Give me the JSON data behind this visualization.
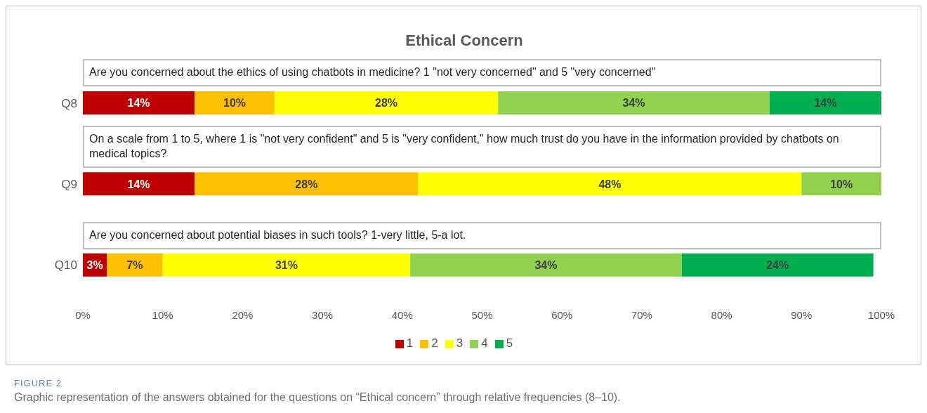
{
  "chart_data": {
    "type": "bar",
    "orientation": "horizontal",
    "stacked": true,
    "title": "Ethical Concern",
    "categories": [
      "Q8",
      "Q9",
      "Q10"
    ],
    "series": [
      {
        "name": "1",
        "color": "#c00000",
        "values": [
          14,
          14,
          3
        ],
        "value_labels": [
          "14%",
          "14%",
          "3%"
        ]
      },
      {
        "name": "2",
        "color": "#ffc000",
        "values": [
          10,
          28,
          7
        ],
        "value_labels": [
          "10%",
          "28%",
          "7%"
        ]
      },
      {
        "name": "3",
        "color": "#ffff00",
        "values": [
          28,
          48,
          31
        ],
        "value_labels": [
          "28%",
          "48%",
          "31%"
        ]
      },
      {
        "name": "4",
        "color": "#92d050",
        "values": [
          34,
          10,
          34
        ],
        "value_labels": [
          "34%",
          "10%",
          "34%"
        ]
      },
      {
        "name": "5",
        "color": "#00b050",
        "values": [
          14,
          null,
          24
        ],
        "value_labels": [
          "14%",
          null,
          "24%"
        ]
      }
    ],
    "xlim": [
      0,
      100
    ],
    "xticks": [
      {
        "value": 0,
        "label": "0%"
      },
      {
        "value": 10,
        "label": "10%"
      },
      {
        "value": 20,
        "label": "20%"
      },
      {
        "value": 30,
        "label": "30%"
      },
      {
        "value": 40,
        "label": "40%"
      },
      {
        "value": 50,
        "label": "50%"
      },
      {
        "value": 60,
        "label": "60%"
      },
      {
        "value": 70,
        "label": "70%"
      },
      {
        "value": 80,
        "label": "80%"
      },
      {
        "value": 90,
        "label": "90%"
      },
      {
        "value": 100,
        "label": "100%"
      }
    ],
    "grid": false,
    "legend": "bottom",
    "annotations": [
      "Are you concerned about the ethics of using chatbots in medicine? 1 \"not very concerned\" and 5 \"very concerned\"",
      "On a scale from 1 to 5, where 1 is \"not very confident\" and 5 is \"very confident,\" how much trust do you have in the information provided by chatbots on medical topics?",
      "Are you concerned about potential biases in such tools? 1-very little, 5-a lot.",
      "FIGURE 2",
      "Graphic representation of the answers obtained for the questions on “Ethical concern” through relative frequencies (8–10)."
    ]
  }
}
